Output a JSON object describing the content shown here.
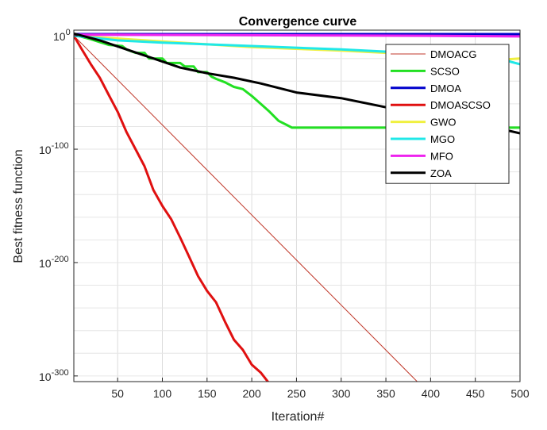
{
  "chart_data": {
    "type": "line",
    "title": "Convergence curve",
    "xlabel": "Iteration#",
    "ylabel": "Best fitness function",
    "xlim": [
      1,
      500
    ],
    "ylim_log10": [
      -305,
      5
    ],
    "yscale": "log",
    "x_ticks": [
      "50",
      "100",
      "150",
      "200",
      "250",
      "300",
      "350",
      "400",
      "450",
      "500"
    ],
    "y_ticks": [
      {
        "base": "10",
        "exp": "0",
        "log10": 0
      },
      {
        "base": "10",
        "exp": "-100",
        "log10": -100
      },
      {
        "base": "10",
        "exp": "-200",
        "log10": -200
      },
      {
        "base": "10",
        "exp": "-300",
        "log10": -300
      }
    ],
    "grid": true,
    "legend_position": "top-right",
    "series": [
      {
        "name": "DMOACG",
        "color": "#c0392b",
        "width": 1,
        "points": [
          [
            1,
            0
          ],
          [
            385,
            -305
          ]
        ]
      },
      {
        "name": "SCSO",
        "color": "#22e022",
        "width": 3,
        "points": [
          [
            1,
            1
          ],
          [
            20,
            -3
          ],
          [
            40,
            -8
          ],
          [
            55,
            -9
          ],
          [
            60,
            -12
          ],
          [
            70,
            -15
          ],
          [
            80,
            -15
          ],
          [
            85,
            -20
          ],
          [
            100,
            -20
          ],
          [
            105,
            -24
          ],
          [
            120,
            -24
          ],
          [
            125,
            -27
          ],
          [
            135,
            -27
          ],
          [
            140,
            -32
          ],
          [
            150,
            -32
          ],
          [
            155,
            -36
          ],
          [
            160,
            -38
          ],
          [
            170,
            -41
          ],
          [
            180,
            -45
          ],
          [
            190,
            -47
          ],
          [
            200,
            -53
          ],
          [
            210,
            -60
          ],
          [
            220,
            -67
          ],
          [
            230,
            -75
          ],
          [
            240,
            -79
          ],
          [
            245,
            -81
          ],
          [
            500,
            -81
          ]
        ]
      },
      {
        "name": "DMOA",
        "color": "#0000cc",
        "width": 3,
        "points": [
          [
            1,
            1.5
          ],
          [
            500,
            1.5
          ]
        ]
      },
      {
        "name": "DMOASCSO",
        "color": "#e01010",
        "width": 3,
        "points": [
          [
            1,
            0
          ],
          [
            10,
            -12
          ],
          [
            20,
            -25
          ],
          [
            30,
            -37
          ],
          [
            40,
            -52
          ],
          [
            50,
            -67
          ],
          [
            60,
            -85
          ],
          [
            70,
            -100
          ],
          [
            80,
            -115
          ],
          [
            90,
            -136
          ],
          [
            100,
            -150
          ],
          [
            110,
            -162
          ],
          [
            120,
            -178
          ],
          [
            130,
            -195
          ],
          [
            140,
            -212
          ],
          [
            150,
            -225
          ],
          [
            160,
            -235
          ],
          [
            170,
            -252
          ],
          [
            180,
            -268
          ],
          [
            190,
            -277
          ],
          [
            200,
            -290
          ],
          [
            210,
            -297
          ],
          [
            220,
            -307
          ]
        ]
      },
      {
        "name": "GWO",
        "color": "#f0f040",
        "width": 3,
        "points": [
          [
            1,
            0
          ],
          [
            100,
            -5
          ],
          [
            200,
            -10
          ],
          [
            300,
            -13
          ],
          [
            400,
            -17
          ],
          [
            450,
            -20
          ],
          [
            480,
            -21
          ],
          [
            500,
            -20
          ]
        ]
      },
      {
        "name": "MGO",
        "color": "#20e8e8",
        "width": 3,
        "points": [
          [
            1,
            0
          ],
          [
            50,
            -4
          ],
          [
            100,
            -6
          ],
          [
            200,
            -9
          ],
          [
            300,
            -12
          ],
          [
            400,
            -16
          ],
          [
            470,
            -18
          ],
          [
            480,
            -20
          ],
          [
            490,
            -23
          ],
          [
            500,
            -25
          ]
        ]
      },
      {
        "name": "MFO",
        "color": "#ee22ee",
        "width": 3,
        "points": [
          [
            1,
            1
          ],
          [
            100,
            0.8
          ],
          [
            200,
            0.5
          ],
          [
            300,
            0.3
          ],
          [
            400,
            0
          ],
          [
            500,
            -0.5
          ]
        ]
      },
      {
        "name": "ZOA",
        "color": "#000000",
        "width": 3,
        "points": [
          [
            1,
            2
          ],
          [
            30,
            -4
          ],
          [
            60,
            -12
          ],
          [
            90,
            -20
          ],
          [
            120,
            -28
          ],
          [
            150,
            -33
          ],
          [
            180,
            -37
          ],
          [
            210,
            -42
          ],
          [
            250,
            -50
          ],
          [
            300,
            -55
          ],
          [
            350,
            -63
          ],
          [
            400,
            -70
          ],
          [
            450,
            -77
          ],
          [
            500,
            -86
          ]
        ]
      }
    ]
  }
}
